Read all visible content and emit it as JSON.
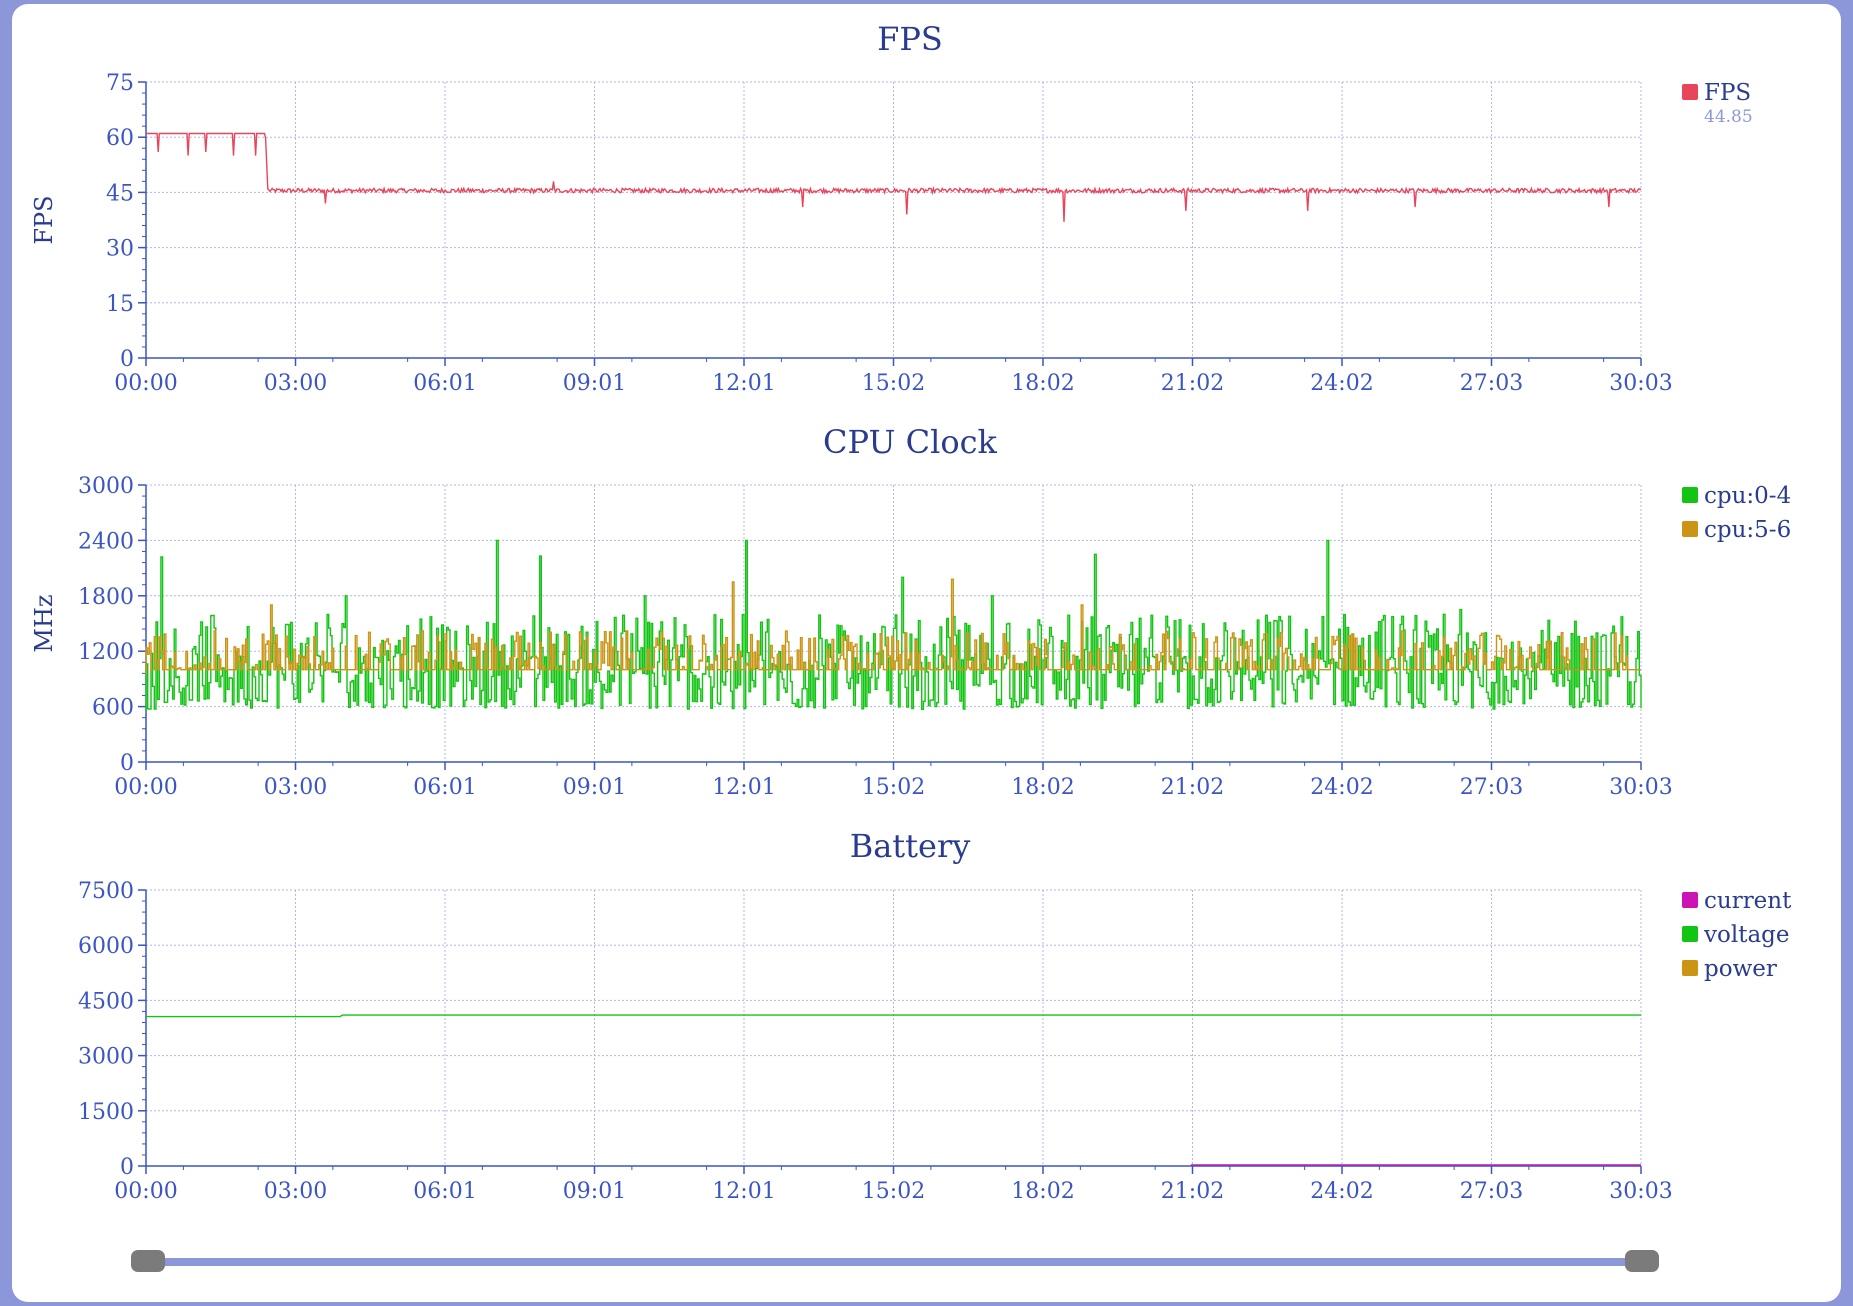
{
  "theme": {
    "frame_bg": "#8b97d8",
    "text_color": "#2a3c8f",
    "axis_color": "#3b55c4",
    "grid_color": "#b3b6e8",
    "legend_sub_color": "#8b97d8"
  },
  "time_axis": {
    "ticks": [
      "00:00",
      "03:00",
      "06:01",
      "09:01",
      "12:01",
      "15:02",
      "18:02",
      "21:02",
      "24:02",
      "27:03",
      "30:03"
    ]
  },
  "chart_data": [
    {
      "type": "line",
      "title": "FPS",
      "ylabel": "FPS",
      "ylim": [
        0,
        75
      ],
      "y_ticks": [
        "0",
        "15",
        "30",
        "45",
        "60",
        "75"
      ],
      "x_range": [
        0,
        30.05
      ],
      "x_unit": "minutes",
      "grid": true,
      "legend_position": "right",
      "series": [
        {
          "name": "FPS",
          "color": "#e8455b",
          "legend_value": "44.85",
          "x": [
            0,
            2.4,
            2.45,
            30.05
          ],
          "y": [
            61,
            61,
            45.5,
            45.5
          ],
          "noise": 0.6,
          "dips": [
            [
              0.25,
              56
            ],
            [
              0.85,
              55
            ],
            [
              1.2,
              56
            ],
            [
              1.75,
              55
            ],
            [
              2.2,
              55
            ],
            [
              3.6,
              42
            ],
            [
              8.2,
              48
            ],
            [
              13.2,
              41
            ],
            [
              15.3,
              39
            ],
            [
              18.45,
              37
            ],
            [
              20.9,
              40
            ],
            [
              23.35,
              40
            ],
            [
              25.5,
              41
            ],
            [
              29.4,
              41
            ]
          ]
        }
      ]
    },
    {
      "type": "line",
      "title": "CPU Clock",
      "ylabel": "MHz",
      "ylim": [
        0,
        3000
      ],
      "y_ticks": [
        "0",
        "600",
        "1200",
        "1800",
        "2400",
        "3000"
      ],
      "x_range": [
        0,
        30.05
      ],
      "x_unit": "minutes",
      "grid": true,
      "legend_position": "right",
      "series": [
        {
          "name": "cpu:0-4",
          "color": "#13c513",
          "baseline": 600,
          "low": 550,
          "high": 1600,
          "spikes": [
            [
              0.3,
              2220
            ],
            [
              4.0,
              1800
            ],
            [
              7.05,
              2400
            ],
            [
              7.9,
              2230
            ],
            [
              10.0,
              1800
            ],
            [
              12.05,
              2400
            ],
            [
              15.2,
              2000
            ],
            [
              17.0,
              1800
            ],
            [
              19.05,
              2250
            ],
            [
              23.75,
              2400
            ],
            [
              26.4,
              1650
            ]
          ]
        },
        {
          "name": "cpu:5-6",
          "color": "#cc9414",
          "baseline": 1000,
          "low": 950,
          "high": 1400,
          "spikes": [
            [
              2.5,
              1700
            ],
            [
              11.8,
              1950
            ],
            [
              16.2,
              1980
            ],
            [
              18.8,
              1700
            ]
          ]
        }
      ]
    },
    {
      "type": "line",
      "title": "Battery",
      "ylabel": "",
      "ylim": [
        0,
        7500
      ],
      "y_ticks": [
        "0",
        "1500",
        "3000",
        "4500",
        "6000",
        "7500"
      ],
      "x_range": [
        0,
        30.05
      ],
      "x_unit": "minutes",
      "grid": true,
      "legend_position": "right",
      "series": [
        {
          "name": "current",
          "color": "#cc14b4",
          "x": [
            21.0,
            30.05
          ],
          "y": [
            30,
            30
          ]
        },
        {
          "name": "voltage",
          "color": "#13c513",
          "x": [
            0,
            3.9,
            3.95,
            30.05
          ],
          "y": [
            4060,
            4060,
            4100,
            4100
          ]
        },
        {
          "name": "power",
          "color": "#cc9414",
          "x": [],
          "y": []
        }
      ]
    }
  ],
  "scrubber": {
    "start": 0,
    "end": 1
  }
}
